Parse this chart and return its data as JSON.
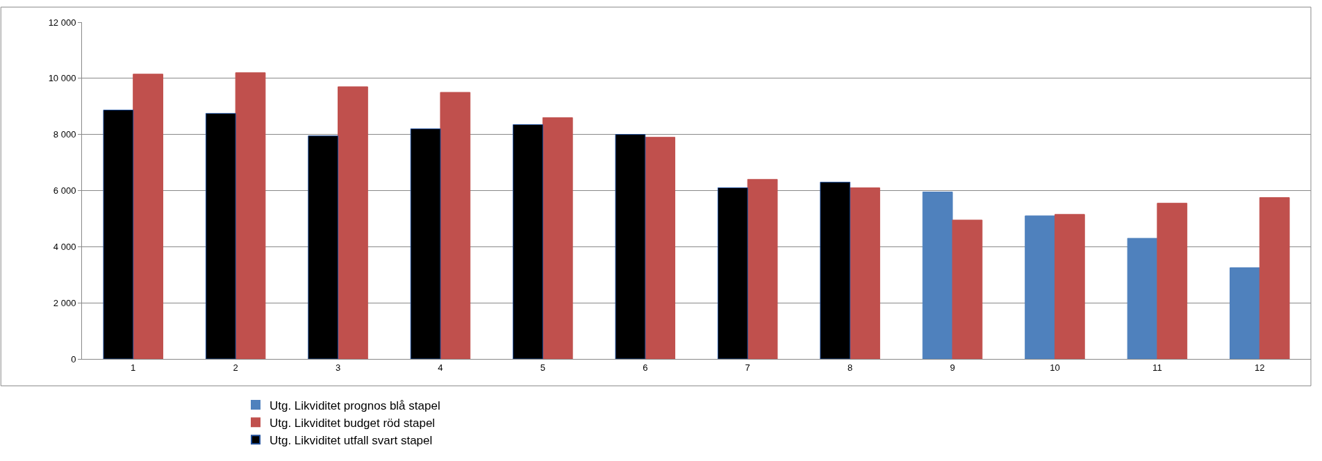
{
  "chart_data": {
    "type": "bar",
    "categories": [
      "1",
      "2",
      "3",
      "4",
      "5",
      "6",
      "7",
      "8",
      "9",
      "10",
      "11",
      "12"
    ],
    "series": [
      {
        "name": "Utg. Likviditet prognos blå stapel",
        "color": "#4f81bd",
        "values": [
          null,
          null,
          null,
          null,
          null,
          null,
          null,
          null,
          5950,
          5100,
          4300,
          3250
        ]
      },
      {
        "name": "Utg. Likviditet budget röd stapel",
        "color": "#c0504d",
        "values": [
          10150,
          10200,
          9700,
          9500,
          8600,
          7900,
          6400,
          6100,
          4950,
          5150,
          5550,
          5750
        ]
      },
      {
        "name": "Utg. Likviditet utfall svart stapel",
        "color": "#000000",
        "values": [
          8870,
          8750,
          7950,
          8200,
          8350,
          8000,
          6100,
          6300,
          null,
          null,
          null,
          null
        ]
      }
    ],
    "ylim": [
      0,
      12000
    ],
    "yticks": [
      0,
      {
        "value": 2000,
        "label": "2 000"
      },
      {
        "value": 4000,
        "label": "4 000"
      },
      {
        "value": 6000,
        "label": "6 000"
      },
      {
        "value": 8000,
        "label": "8 000"
      },
      {
        "value": 10000,
        "label": "10 000"
      },
      {
        "value": 12000,
        "label": "12 000"
      }
    ],
    "grid": "y",
    "legend": "bottom"
  }
}
